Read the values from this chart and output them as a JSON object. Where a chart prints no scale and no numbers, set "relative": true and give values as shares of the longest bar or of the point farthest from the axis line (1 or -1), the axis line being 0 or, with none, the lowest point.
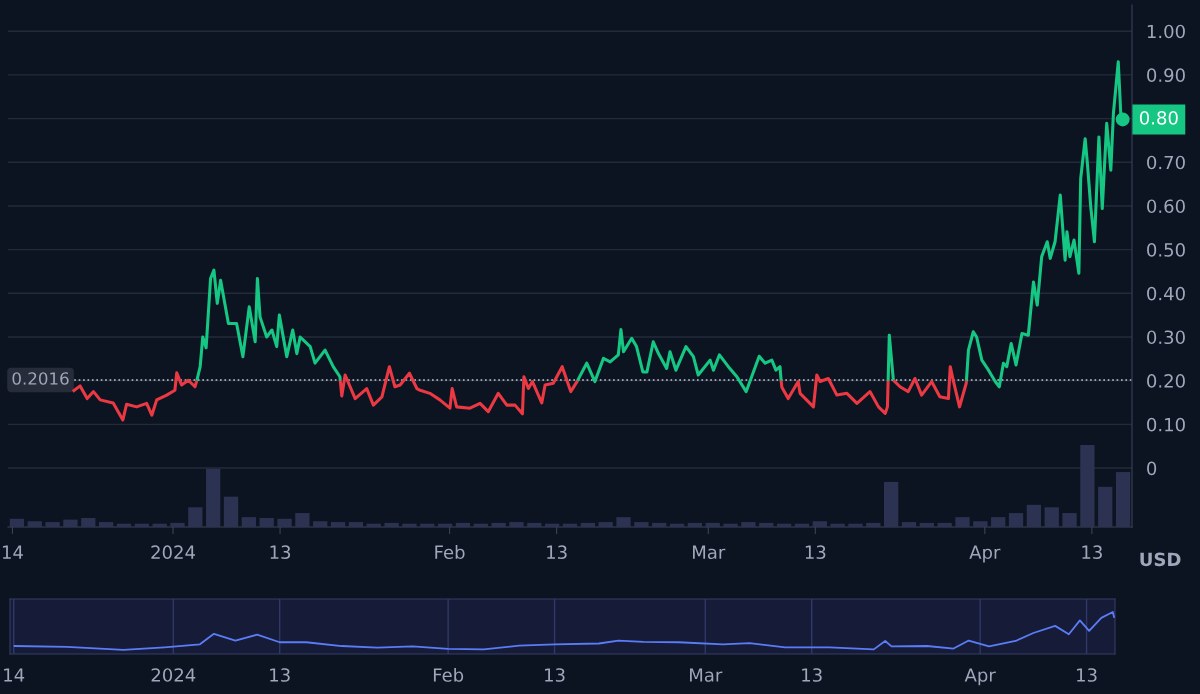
{
  "chart_data": [
    {
      "type": "line",
      "ylabel": "USD",
      "grid": "y",
      "xlim": [
        "2023-12-13T12:00",
        "2024-04-17T12:00"
      ],
      "xticks": [
        {
          "value": "2023-12-14",
          "label": "14"
        },
        {
          "value": "2024-01-01",
          "label": "2024"
        },
        {
          "value": "2024-01-13",
          "label": "13"
        },
        {
          "value": "2024-02-01",
          "label": "Feb"
        },
        {
          "value": "2024-02-13",
          "label": "13"
        },
        {
          "value": "2024-03-01",
          "label": "Mar"
        },
        {
          "value": "2024-03-13",
          "label": "13"
        },
        {
          "value": "2024-04-01",
          "label": "Apr"
        },
        {
          "value": "2024-04-13",
          "label": "13"
        }
      ],
      "ylim": [
        -0.135,
        1.06
      ],
      "yticks": [
        {
          "value": 0,
          "label": "0"
        },
        {
          "value": 0.1,
          "label": "0.10"
        },
        {
          "value": 0.2,
          "label": "0.20"
        },
        {
          "value": 0.3,
          "label": "0.30"
        },
        {
          "value": 0.4,
          "label": "0.40"
        },
        {
          "value": 0.5,
          "label": "0.50"
        },
        {
          "value": 0.6,
          "label": "0.60"
        },
        {
          "value": 0.7,
          "label": "0.70"
        },
        {
          "value": 0.8,
          "label": null
        },
        {
          "value": 0.9,
          "label": "0.90"
        },
        {
          "value": 1.0,
          "label": "1.00"
        }
      ],
      "ref_lines": [
        {
          "axis": "y",
          "value": 0.2016,
          "label": "0.2016",
          "color": "#c3c7d2",
          "line_style": "dotted"
        }
      ],
      "annotations": [
        {
          "text": "0.80",
          "x": "2024-04-16T11:00",
          "y": 0.798
        }
      ],
      "series": [
        {
          "color": "#ea3943",
          "x": [
            "2023-12-20T18:00",
            "2023-12-21T14:00",
            "2023-12-22T09:00",
            "2023-12-23T02:00",
            "2023-12-23T20:00",
            "2023-12-25T07:00",
            "2023-12-26T09:00",
            "2023-12-26T19:00",
            "2023-12-27T22:00",
            "2023-12-29T01:00",
            "2023-12-29T15:00",
            "2023-12-30T04:00",
            "2023-12-31T07:00",
            "2024-01-01T05:00",
            "2024-01-01T10:00",
            "2024-01-01T23:00",
            "2024-01-02T17:00",
            "2024-01-03T11:00",
            "2024-01-03T16:00"
          ],
          "values": [
            0.175,
            0.188,
            0.159,
            0.175,
            0.156,
            0.149,
            0.11,
            0.146,
            0.14,
            0.148,
            0.121,
            0.156,
            0.167,
            0.178,
            0.218,
            0.19,
            0.201,
            0.186,
            0.2
          ]
        },
        {
          "color": "#16c784",
          "x": [
            "2024-01-03T16:00",
            "2024-01-04T01:00",
            "2024-01-04T08:00",
            "2024-01-04T17:00",
            "2024-01-05T05:00",
            "2024-01-05T14:00",
            "2024-01-05T23:00",
            "2024-01-06T08:00",
            "2024-01-07T05:00",
            "2024-01-08T03:00",
            "2024-01-08T20:00",
            "2024-01-09T13:00",
            "2024-01-10T05:00",
            "2024-01-10T11:00",
            "2024-01-10T18:00",
            "2024-01-11T12:00",
            "2024-01-12T02:00",
            "2024-01-12T15:00",
            "2024-01-12T22:00",
            "2024-01-13T18:00",
            "2024-01-14T10:00",
            "2024-01-14T21:00",
            "2024-01-15T06:00",
            "2024-01-16T09:00",
            "2024-01-16T22:00",
            "2024-01-18T01:00",
            "2024-01-18T23:00",
            "2024-01-19T17:00",
            "2024-01-19T18:00"
          ],
          "values": [
            0.2,
            0.232,
            0.3,
            0.275,
            0.434,
            0.453,
            0.377,
            0.43,
            0.331,
            0.331,
            0.255,
            0.369,
            0.289,
            0.434,
            0.346,
            0.3,
            0.316,
            0.278,
            0.35,
            0.255,
            0.316,
            0.262,
            0.3,
            0.278,
            0.24,
            0.27,
            0.232,
            0.209,
            0.2
          ]
        },
        {
          "color": "#ea3943",
          "x": [
            "2024-01-19T18:00",
            "2024-01-19T22:00",
            "2024-01-20T07:00",
            "2024-01-21T10:00",
            "2024-01-22T17:00",
            "2024-01-23T11:00",
            "2024-01-24T10:00",
            "2024-01-25T06:00",
            "2024-01-25T21:00",
            "2024-01-26T11:00",
            "2024-01-27T12:00",
            "2024-01-28T08:00",
            "2024-01-28T17:00",
            "2024-01-29T19:00",
            "2024-01-30T22:00",
            "2024-02-01T01:00",
            "2024-02-01T07:00",
            "2024-02-01T19:00",
            "2024-02-03T07:00",
            "2024-02-04T10:00",
            "2024-02-05T08:00",
            "2024-02-06T11:00",
            "2024-02-07T10:00",
            "2024-02-08T08:00",
            "2024-02-09T04:00",
            "2024-02-09T08:00",
            "2024-02-09T20:00",
            "2024-02-10T07:00",
            "2024-02-11T08:00",
            "2024-02-11T17:00",
            "2024-02-12T15:00",
            "2024-02-13T15:00",
            "2024-02-14T14:00",
            "2024-02-15T08:30"
          ],
          "values": [
            0.2,
            0.165,
            0.213,
            0.159,
            0.182,
            0.144,
            0.163,
            0.232,
            0.186,
            0.19,
            0.217,
            0.182,
            0.178,
            0.171,
            0.156,
            0.137,
            0.182,
            0.14,
            0.137,
            0.148,
            0.129,
            0.171,
            0.144,
            0.144,
            0.124,
            0.209,
            0.182,
            0.198,
            0.149,
            0.19,
            0.194,
            0.232,
            0.175,
            0.2
          ]
        },
        {
          "color": "#16c784",
          "x": [
            "2024-02-15T08:30",
            "2024-02-15T15:00",
            "2024-02-16T09:00",
            "2024-02-17T07:00",
            "2024-02-18T06:00",
            "2024-02-19T00:00",
            "2024-02-19T22:00",
            "2024-02-20T05:00",
            "2024-02-20T12:00",
            "2024-02-21T10:00",
            "2024-02-21T23:00",
            "2024-02-22T16:00",
            "2024-02-23T03:00",
            "2024-02-23T20:00",
            "2024-02-24T10:00",
            "2024-02-25T08:00",
            "2024-02-25T17:00",
            "2024-02-26T09:00",
            "2024-02-27T12:00",
            "2024-02-28T08:00",
            "2024-02-28T21:00",
            "2024-03-01T05:00",
            "2024-03-01T14:00",
            "2024-03-02T06:00",
            "2024-03-03T06:00",
            "2024-03-04T05:00",
            "2024-03-05T06:00",
            "2024-03-05T16:00",
            "2024-03-06T17:00",
            "2024-03-07T09:00",
            "2024-03-08T03:00",
            "2024-03-08T14:00",
            "2024-03-09T01:00",
            "2024-03-09T04:00"
          ],
          "values": [
            0.2,
            0.211,
            0.24,
            0.198,
            0.251,
            0.243,
            0.259,
            0.317,
            0.266,
            0.297,
            0.278,
            0.22,
            0.22,
            0.289,
            0.262,
            0.228,
            0.266,
            0.224,
            0.278,
            0.255,
            0.213,
            0.247,
            0.224,
            0.259,
            0.232,
            0.209,
            0.175,
            0.198,
            0.256,
            0.24,
            0.247,
            0.224,
            0.232,
            0.2
          ]
        },
        {
          "color": "#ea3943",
          "x": [
            "2024-03-09T04:00",
            "2024-03-09T06:00",
            "2024-03-09T23:00",
            "2024-03-11T02:00",
            "2024-03-11T07:00",
            "2024-03-12T19:00",
            "2024-03-13T04:00",
            "2024-03-13T13:00",
            "2024-03-14T11:00",
            "2024-03-15T10:00",
            "2024-03-16T13:00",
            "2024-03-17T16:00",
            "2024-03-19T03:00",
            "2024-03-20T02:00",
            "2024-03-20T20:00",
            "2024-03-21T02:00",
            "2024-03-21T03:54"
          ],
          "values": [
            0.2,
            0.185,
            0.159,
            0.198,
            0.171,
            0.14,
            0.213,
            0.198,
            0.205,
            0.167,
            0.171,
            0.148,
            0.175,
            0.14,
            0.125,
            0.14,
            0.2
          ]
        },
        {
          "color": "#16c784",
          "x": [
            "2024-03-21T03:54",
            "2024-03-21T07:00",
            "2024-03-21T18:00"
          ],
          "values": [
            0.2,
            0.304,
            0.201
          ]
        },
        {
          "color": "#ea3943",
          "x": [
            "2024-03-21T18:00",
            "2024-03-22T12:00",
            "2024-03-23T10:00",
            "2024-03-24T04:00",
            "2024-03-24T22:00",
            "2024-03-26T01:00",
            "2024-03-26T23:00",
            "2024-03-27T22:00",
            "2024-03-28T03:00",
            "2024-03-28T11:00",
            "2024-03-29T04:00",
            "2024-03-29T22:00",
            "2024-03-29T22:36"
          ],
          "values": [
            0.201,
            0.186,
            0.175,
            0.205,
            0.167,
            0.198,
            0.163,
            0.159,
            0.232,
            0.201,
            0.14,
            0.194,
            0.2
          ]
        },
        {
          "color": "#16c784",
          "x": [
            "2024-03-29T22:36",
            "2024-03-30T04:00",
            "2024-03-30T17:00",
            "2024-03-31T02:00",
            "2024-03-31T16:00",
            "2024-04-01T10:00",
            "2024-04-02T04:00",
            "2024-04-02T15:00",
            "2024-04-03T02:00",
            "2024-04-03T11:00",
            "2024-04-03T23:00",
            "2024-04-04T12:00",
            "2024-04-05T04:00",
            "2024-04-05T21:00",
            "2024-04-06T11:00",
            "2024-04-06T21:00",
            "2024-04-07T09:00",
            "2024-04-08T00:00",
            "2024-04-08T08:00",
            "2024-04-08T21:00",
            "2024-04-09T11:00",
            "2024-04-10T00:00",
            "2024-04-10T05:00",
            "2024-04-10T13:00",
            "2024-04-11T00:00",
            "2024-04-11T13:00",
            "2024-04-11T18:00",
            "2024-04-12T06:00",
            "2024-04-12T12:00",
            "2024-04-12T21:00",
            "2024-04-13T07:00",
            "2024-04-13T19:00",
            "2024-04-14T04:00",
            "2024-04-14T16:00",
            "2024-04-15T03:00",
            "2024-04-15T10:00",
            "2024-04-15T23:00",
            "2024-04-16T06:00",
            "2024-04-16T11:00"
          ],
          "values": [
            0.2,
            0.27,
            0.312,
            0.3,
            0.247,
            0.224,
            0.198,
            0.186,
            0.24,
            0.232,
            0.285,
            0.236,
            0.308,
            0.304,
            0.426,
            0.373,
            0.484,
            0.518,
            0.48,
            0.518,
            0.625,
            0.476,
            0.541,
            0.484,
            0.522,
            0.446,
            0.663,
            0.754,
            0.697,
            0.598,
            0.518,
            0.758,
            0.594,
            0.789,
            0.682,
            0.812,
            0.93,
            0.808,
            0.798
          ]
        }
      ]
    },
    {
      "type": "bar",
      "relative": true,
      "tick_labels": false,
      "color": "#2c3352",
      "categories": [
        null,
        null,
        null,
        null,
        null,
        null,
        null,
        null,
        null,
        null,
        null,
        null,
        null,
        null,
        null,
        null,
        null,
        null,
        null,
        null,
        null,
        null,
        null,
        null,
        null,
        null,
        null,
        null,
        null,
        null,
        null,
        null,
        null,
        null,
        null,
        null,
        null,
        null,
        null,
        null,
        null,
        null,
        null,
        null,
        null,
        null,
        null,
        null,
        null,
        null,
        null,
        null,
        null,
        null,
        null,
        null,
        null,
        null,
        null,
        null,
        null,
        null,
        null
      ],
      "values": [
        0.1,
        0.07,
        0.06,
        0.09,
        0.11,
        0.06,
        0.04,
        0.04,
        0.04,
        0.05,
        0.24,
        0.71,
        0.37,
        0.12,
        0.11,
        0.1,
        0.17,
        0.07,
        0.06,
        0.06,
        0.04,
        0.05,
        0.04,
        0.04,
        0.04,
        0.05,
        0.04,
        0.05,
        0.06,
        0.05,
        0.04,
        0.04,
        0.05,
        0.06,
        0.12,
        0.06,
        0.05,
        0.04,
        0.05,
        0.05,
        0.04,
        0.06,
        0.05,
        0.04,
        0.04,
        0.07,
        0.04,
        0.04,
        0.05,
        0.55,
        0.06,
        0.05,
        0.05,
        0.12,
        0.07,
        0.12,
        0.17,
        0.27,
        0.24,
        0.17,
        1.0,
        0.49,
        0.67
      ]
    },
    {
      "type": "line",
      "relative": true,
      "tick_labels": "x",
      "grid": "x",
      "color": "#5b7cf7",
      "xlim": [
        "2023-12-13T14:00",
        "2024-04-16T05:00"
      ],
      "xticks": [
        {
          "value": "2023-12-14",
          "label": "14"
        },
        {
          "value": "2024-01-01",
          "label": "2024"
        },
        {
          "value": "2024-01-13",
          "label": "13"
        },
        {
          "value": "2024-02-01",
          "label": "Feb"
        },
        {
          "value": "2024-02-13",
          "label": "13"
        },
        {
          "value": "2024-03-01",
          "label": "Mar"
        },
        {
          "value": "2024-03-13",
          "label": "13"
        },
        {
          "value": "2024-04-01",
          "label": "Apr"
        },
        {
          "value": "2024-04-13",
          "label": "13"
        }
      ],
      "x": [
        "2023-12-14T00:00",
        "2023-12-20T00:00",
        "2023-12-26T09:00",
        "2023-12-31T00:00",
        "2024-01-04T00:00",
        "2024-01-05T14:00",
        "2024-01-08T00:00",
        "2024-01-10T11:00",
        "2024-01-13T00:00",
        "2024-01-16T00:00",
        "2024-01-20T00:00",
        "2024-01-24T00:00",
        "2024-01-28T00:00",
        "2024-02-01T00:00",
        "2024-02-05T00:00",
        "2024-02-09T00:00",
        "2024-02-13T00:00",
        "2024-02-18T00:00",
        "2024-02-20T05:00",
        "2024-02-23T00:00",
        "2024-02-27T00:00",
        "2024-03-03T00:00",
        "2024-03-06T00:00",
        "2024-03-10T00:00",
        "2024-03-15T00:00",
        "2024-03-20T00:00",
        "2024-03-21T07:00",
        "2024-03-22T00:00",
        "2024-03-26T00:00",
        "2024-03-29T00:00",
        "2024-03-30T17:00",
        "2024-04-02T00:00",
        "2024-04-05T00:00",
        "2024-04-07T00:00",
        "2024-04-09T11:00",
        "2024-04-11T00:00",
        "2024-04-12T06:00",
        "2024-04-13T07:00",
        "2024-04-14T16:00",
        "2024-04-15T23:00",
        "2024-04-16T03:00"
      ],
      "values": [
        0.19,
        0.17,
        0.1,
        0.16,
        0.23,
        0.48,
        0.32,
        0.46,
        0.28,
        0.28,
        0.19,
        0.15,
        0.18,
        0.12,
        0.11,
        0.2,
        0.23,
        0.25,
        0.32,
        0.29,
        0.28,
        0.23,
        0.26,
        0.16,
        0.16,
        0.11,
        0.31,
        0.18,
        0.19,
        0.13,
        0.32,
        0.18,
        0.31,
        0.5,
        0.67,
        0.47,
        0.8,
        0.55,
        0.86,
        1.0,
        0.86
      ]
    }
  ]
}
